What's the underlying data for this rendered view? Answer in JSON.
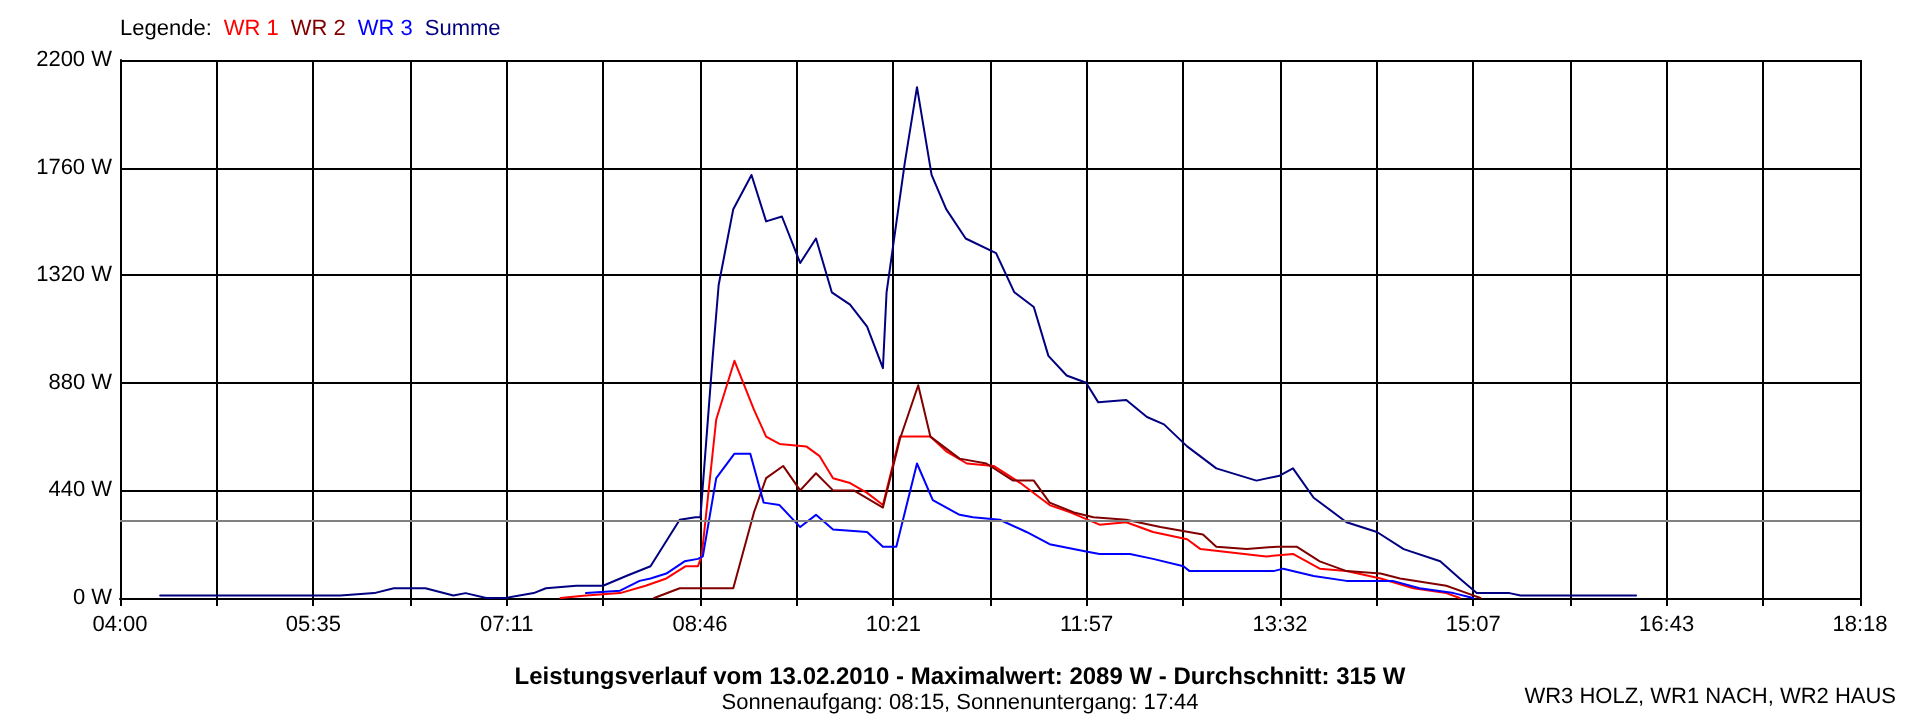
{
  "chart_data": {
    "type": "line",
    "title": "Leistungsverlauf vom 13.02.2010 - Maximalwert: 2089 W - Durchschnitt: 315 W",
    "subtitle": "Sonnenaufgang: 08:15, Sonnenuntergang: 17:44",
    "legend_title": "Legende:",
    "annotations": [
      "WR3 HOLZ, WR1 NACH, WR2 HAUS"
    ],
    "xlim": [
      4,
      18.3
    ],
    "xticks": [
      {
        "value": 4,
        "label": "04:00"
      },
      {
        "value": 4.794,
        "label": null
      },
      {
        "value": 5.589,
        "label": "05:35"
      },
      {
        "value": 6.383,
        "label": null
      },
      {
        "value": 7.178,
        "label": "07:11"
      },
      {
        "value": 7.972,
        "label": null
      },
      {
        "value": 8.767,
        "label": "08:46"
      },
      {
        "value": 9.561,
        "label": null
      },
      {
        "value": 10.356,
        "label": "10:21"
      },
      {
        "value": 11.15,
        "label": null
      },
      {
        "value": 11.944,
        "label": "11:57"
      },
      {
        "value": 12.739,
        "label": null
      },
      {
        "value": 13.533,
        "label": "13:32"
      },
      {
        "value": 14.328,
        "label": null
      },
      {
        "value": 15.122,
        "label": "15:07"
      },
      {
        "value": 15.917,
        "label": null
      },
      {
        "value": 16.711,
        "label": "16:43"
      },
      {
        "value": 17.506,
        "label": null
      },
      {
        "value": 18.3,
        "label": "18:18"
      }
    ],
    "ylim": [
      0,
      2200
    ],
    "yticks": [
      {
        "value": 0,
        "label": "0 W"
      },
      {
        "value": 440,
        "label": "440 W"
      },
      {
        "value": 880,
        "label": "880 W"
      },
      {
        "value": 1320,
        "label": "1320 W"
      },
      {
        "value": 1760,
        "label": "1760 W"
      },
      {
        "value": 2200,
        "label": "2200 W"
      }
    ],
    "grid": true,
    "legend": "top left",
    "marker": "none",
    "line_style": "solid",
    "ref_lines": [
      {
        "axis": "y",
        "value": 315,
        "color": "#808080"
      }
    ],
    "series": [
      {
        "name": "WR 1",
        "color": "#ff0000",
        "x": [
          7.62,
          7.83,
          8.11,
          8.32,
          8.49,
          8.65,
          8.75,
          8.78,
          8.9,
          9.05,
          9.21,
          9.31,
          9.42,
          9.64,
          9.75,
          9.86,
          10.0,
          10.14,
          10.27,
          10.41,
          10.66,
          10.79,
          10.96,
          11.18,
          11.4,
          11.64,
          11.81,
          12.05,
          12.27,
          12.49,
          12.77,
          12.88,
          13.42,
          13.64,
          13.86,
          14.08,
          14.36,
          14.63,
          14.9,
          15.01
        ],
        "values": [
          0,
          10,
          20,
          50,
          80,
          130,
          130,
          170,
          730,
          970,
          770,
          660,
          630,
          620,
          580,
          490,
          470,
          430,
          380,
          660,
          660,
          600,
          550,
          540,
          470,
          380,
          350,
          300,
          310,
          270,
          240,
          200,
          170,
          180,
          120,
          110,
          80,
          40,
          20,
          0
        ]
      },
      {
        "name": "WR 2",
        "color": "#800000",
        "x": [
          8.39,
          8.6,
          9.04,
          9.21,
          9.31,
          9.45,
          9.59,
          9.72,
          9.86,
          10.03,
          10.27,
          10.41,
          10.56,
          10.66,
          10.9,
          11.12,
          11.34,
          11.51,
          11.64,
          11.84,
          12.0,
          12.27,
          12.55,
          12.9,
          13.01,
          13.26,
          13.51,
          13.67,
          13.86,
          14.08,
          14.36,
          14.52,
          14.9,
          15.07,
          15.18
        ],
        "values": [
          0,
          40,
          40,
          350,
          490,
          540,
          440,
          510,
          440,
          440,
          370,
          650,
          870,
          660,
          570,
          550,
          480,
          480,
          390,
          350,
          330,
          320,
          290,
          260,
          210,
          200,
          210,
          210,
          150,
          110,
          100,
          80,
          50,
          20,
          0
        ]
      },
      {
        "name": "WR 3",
        "color": "#0000ff",
        "x": [
          7.83,
          8.11,
          8.27,
          8.36,
          8.49,
          8.64,
          8.75,
          8.79,
          8.9,
          9.05,
          9.18,
          9.29,
          9.42,
          9.59,
          9.72,
          9.86,
          10.14,
          10.27,
          10.38,
          10.55,
          10.68,
          10.9,
          11.01,
          11.23,
          11.45,
          11.64,
          11.94,
          12.05,
          12.3,
          12.49,
          12.74,
          12.79,
          13.48,
          13.56,
          13.81,
          14.08,
          14.46,
          14.68,
          14.96,
          15.12
        ],
        "values": [
          20,
          30,
          70,
          80,
          100,
          150,
          160,
          170,
          490,
          590,
          590,
          390,
          380,
          290,
          340,
          280,
          270,
          210,
          210,
          550,
          400,
          340,
          330,
          320,
          270,
          220,
          190,
          180,
          180,
          160,
          130,
          110,
          110,
          120,
          90,
          70,
          70,
          40,
          20,
          0
        ]
      },
      {
        "name": "Summe",
        "color": "#000080",
        "x": [
          4.33,
          5.81,
          6.09,
          6.25,
          6.51,
          6.74,
          6.84,
          7.01,
          7.17,
          7.4,
          7.5,
          7.75,
          7.97,
          8.16,
          8.36,
          8.6,
          8.73,
          8.77,
          8.87,
          8.92,
          9.04,
          9.19,
          9.31,
          9.44,
          9.59,
          9.72,
          9.85,
          10.0,
          10.14,
          10.27,
          10.3,
          10.45,
          10.55,
          10.67,
          10.79,
          10.95,
          11.2,
          11.35,
          11.51,
          11.63,
          11.78,
          11.94,
          12.04,
          12.27,
          12.44,
          12.58,
          12.77,
          13.01,
          13.34,
          13.53,
          13.64,
          13.81,
          14.08,
          14.33,
          14.55,
          14.85,
          15.01,
          15.15,
          15.42,
          15.51,
          15.92,
          16.2,
          16.46
        ],
        "values": [
          10,
          10,
          20,
          40,
          40,
          10,
          20,
          0,
          0,
          20,
          40,
          50,
          50,
          90,
          130,
          320,
          330,
          330,
          980,
          1280,
          1590,
          1730,
          1540,
          1560,
          1370,
          1470,
          1250,
          1200,
          1110,
          940,
          1250,
          1780,
          2089,
          1730,
          1590,
          1470,
          1410,
          1250,
          1190,
          990,
          910,
          880,
          800,
          810,
          740,
          710,
          620,
          530,
          480,
          500,
          530,
          410,
          310,
          270,
          200,
          150,
          80,
          20,
          20,
          10,
          10,
          10,
          10
        ]
      }
    ]
  }
}
